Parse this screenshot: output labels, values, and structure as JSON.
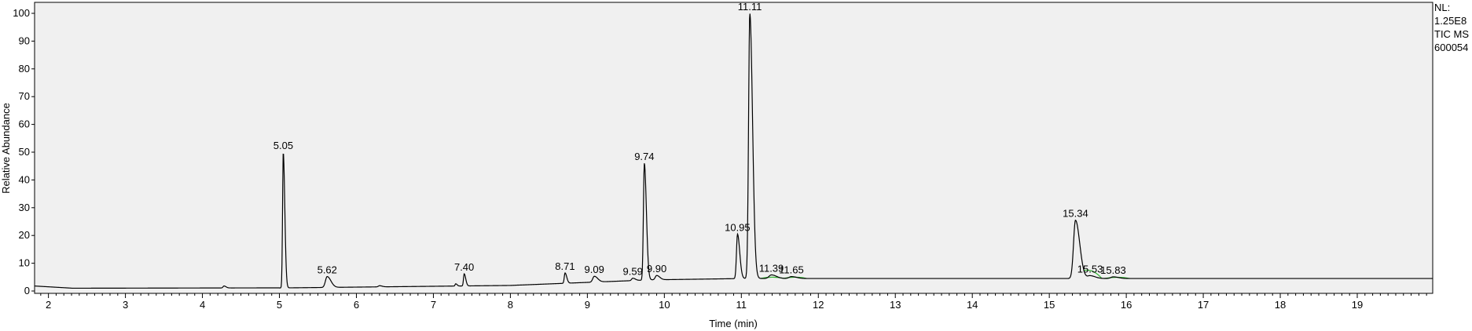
{
  "info_block": {
    "nl_label": "NL:",
    "nl_value": "1.25E8",
    "trace": "TIC  MS",
    "sample": "600054"
  },
  "chart_data": {
    "type": "line",
    "title": "",
    "xlabel": "Time (min)",
    "ylabel": "Relative Abundance",
    "xlim": [
      1.82,
      19.98
    ],
    "ylim": [
      0,
      100
    ],
    "x_ticks": [
      2,
      3,
      4,
      5,
      6,
      7,
      8,
      9,
      10,
      11,
      12,
      13,
      14,
      15,
      16,
      17,
      18,
      19
    ],
    "y_ticks": [
      0,
      10,
      20,
      30,
      40,
      50,
      60,
      70,
      80,
      90,
      100
    ],
    "grid": false,
    "baseline": 4.5,
    "peaks": [
      {
        "rt": 4.28,
        "height": 1.8,
        "width": 0.012,
        "label": ""
      },
      {
        "rt": 5.05,
        "height": 50,
        "width": 0.009,
        "label": "5.05"
      },
      {
        "rt": 5.62,
        "height": 5.2,
        "width": 0.022,
        "label": "5.62"
      },
      {
        "rt": 6.3,
        "height": 1.9,
        "width": 0.015,
        "label": ""
      },
      {
        "rt": 7.29,
        "height": 2.6,
        "width": 0.008,
        "label": ""
      },
      {
        "rt": 7.4,
        "height": 6.2,
        "width": 0.009,
        "label": "7.40"
      },
      {
        "rt": 8.08,
        "height": 2.1,
        "width": 0.01,
        "label": ""
      },
      {
        "rt": 8.71,
        "height": 6.5,
        "width": 0.01,
        "label": "8.71"
      },
      {
        "rt": 9.09,
        "height": 5.3,
        "width": 0.02,
        "label": "9.09"
      },
      {
        "rt": 9.59,
        "height": 4.6,
        "width": 0.015,
        "label": "9.59"
      },
      {
        "rt": 9.74,
        "height": 46,
        "width": 0.012,
        "label": "9.74"
      },
      {
        "rt": 9.9,
        "height": 5.6,
        "width": 0.018,
        "label": "9.90"
      },
      {
        "rt": 10.95,
        "height": 20.5,
        "width": 0.013,
        "label": "10.95"
      },
      {
        "rt": 11.11,
        "height": 100,
        "width": 0.016,
        "label": "11.11"
      },
      {
        "rt": 11.39,
        "height": 5.8,
        "width": 0.03,
        "label": "11.39"
      },
      {
        "rt": 11.65,
        "height": 5.2,
        "width": 0.03,
        "label": "11.65"
      },
      {
        "rt": 15.34,
        "height": 25.5,
        "width": 0.025,
        "label": "15.34"
      },
      {
        "rt": 15.53,
        "height": 5.5,
        "width": 0.03,
        "label": "15.53"
      },
      {
        "rt": 15.83,
        "height": 5.1,
        "width": 0.03,
        "label": "15.83"
      }
    ]
  },
  "colors": {
    "plot_background": "#f0f0f0",
    "trace": "#000000",
    "integration_marks": "#32b432"
  }
}
